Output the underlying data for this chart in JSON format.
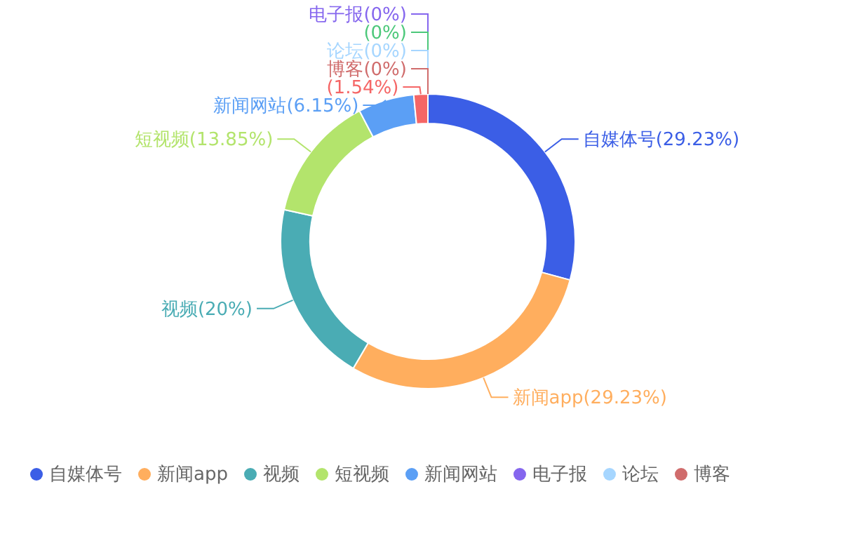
{
  "chart_data": {
    "type": "donut",
    "categories": [
      "自媒体号",
      "新闻app",
      "视频",
      "短视频",
      "新闻网站",
      null,
      "电子报",
      null,
      "论坛",
      "博客"
    ],
    "values": [
      29.23,
      29.23,
      20,
      13.85,
      6.15,
      1.54,
      0,
      0,
      0,
      0
    ],
    "colors": [
      "#3b5ee6",
      "#ffae5e",
      "#4aacb4",
      "#b3e46c",
      "#5b9ff5",
      "#f56666",
      "#8566ee",
      "#4cc87a",
      "#a6d6ff",
      "#d06c6c"
    ],
    "value_labels": [
      "(29.23%)",
      "(29.23%)",
      "(20%)",
      "(13.85%)",
      "(6.15%)",
      "(1.54%)",
      "(0%)",
      "(0%)",
      "(0%)",
      "(0%)"
    ],
    "legend": "bottom"
  }
}
